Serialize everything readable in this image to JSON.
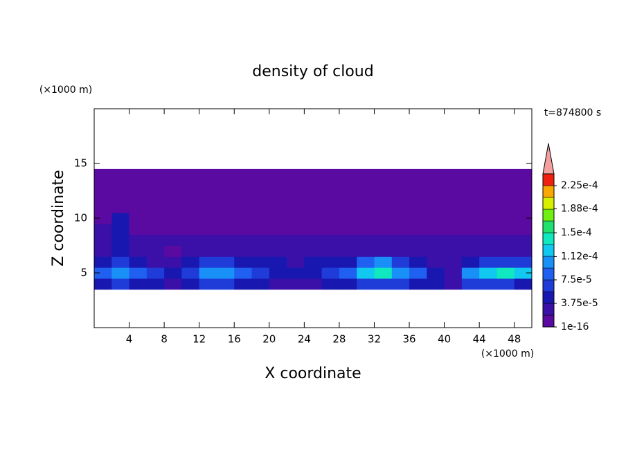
{
  "chart_data": {
    "type": "contour",
    "title": "density of cloud",
    "xlabel": "X coordinate",
    "ylabel": "Z coordinate",
    "xunit": "(×1000 m)",
    "yunit": "(×1000 m)",
    "annotation": "t=874800 s",
    "xlim": [
      0,
      50
    ],
    "ylim": [
      0,
      20
    ],
    "xticks": [
      4,
      8,
      12,
      16,
      20,
      24,
      28,
      32,
      36,
      40,
      44,
      48
    ],
    "yticks": [
      5,
      10,
      15
    ],
    "x": [
      1,
      3,
      5,
      7,
      9,
      11,
      13,
      15,
      17,
      19,
      21,
      23,
      25,
      27,
      29,
      31,
      33,
      35,
      37,
      39,
      41,
      43,
      45,
      47,
      49
    ],
    "y": [
      4,
      5,
      6,
      7,
      8,
      9,
      10,
      11,
      12,
      13,
      14
    ],
    "z": [
      [
        5e-05,
        6e-05,
        5e-05,
        4e-05,
        3e-05,
        4e-05,
        7e-05,
        7e-05,
        5e-05,
        4e-05,
        3e-05,
        3e-05,
        3e-05,
        4e-05,
        4e-05,
        6e-05,
        7e-05,
        6e-05,
        5e-05,
        4e-05,
        3e-05,
        6e-05,
        7e-05,
        6e-05,
        5e-05
      ],
      [
        9e-05,
        0.00011,
        9e-05,
        7e-05,
        5e-05,
        7e-05,
        0.0001,
        0.00011,
        8e-05,
        6e-05,
        5e-05,
        4e-05,
        5e-05,
        6e-05,
        8e-05,
        0.00013,
        0.00014,
        0.00011,
        8e-05,
        5e-05,
        2e-05,
        0.00011,
        0.00013,
        0.00014,
        0.00012
      ],
      [
        5e-05,
        6e-05,
        5e-05,
        3e-05,
        2e-05,
        4e-05,
        6e-05,
        6e-05,
        5e-05,
        4e-05,
        4e-05,
        3e-05,
        4e-05,
        5e-05,
        5e-05,
        8e-05,
        0.0001,
        6e-05,
        4e-05,
        3e-05,
        2e-05,
        5e-05,
        6e-05,
        7e-05,
        6e-05
      ],
      [
        3e-05,
        5e-05,
        3e-05,
        2e-05,
        1e-05,
        2e-05,
        3e-05,
        3e-05,
        2e-05,
        2e-05,
        3e-05,
        2e-05,
        2e-05,
        3e-05,
        2e-05,
        3e-05,
        3e-05,
        3e-05,
        2e-05,
        2e-05,
        2e-05,
        3e-05,
        3e-05,
        3e-05,
        3e-05
      ],
      [
        2e-05,
        4e-05,
        2e-05,
        2e-05,
        2e-05,
        2e-05,
        2e-05,
        2e-05,
        2e-05,
        2e-05,
        2e-05,
        2e-05,
        2e-05,
        2e-05,
        2e-05,
        2e-05,
        2e-05,
        2e-05,
        2e-05,
        2e-05,
        2e-05,
        2e-05,
        2e-05,
        2e-05,
        2e-05
      ],
      [
        2e-05,
        4e-05,
        1e-05,
        1e-05,
        1e-05,
        1e-05,
        1e-05,
        1e-05,
        1e-05,
        1e-05,
        1e-05,
        1e-05,
        1e-05,
        1e-05,
        1e-05,
        1e-05,
        1e-05,
        1e-05,
        1e-05,
        1e-05,
        1e-05,
        1e-05,
        1e-05,
        1e-05,
        1e-05
      ],
      [
        1e-06,
        4e-05,
        1e-06,
        1e-06,
        1e-06,
        1e-06,
        1e-06,
        1e-06,
        1e-06,
        1e-06,
        1e-06,
        1e-06,
        1e-06,
        1e-06,
        1e-06,
        1e-06,
        1e-06,
        1e-06,
        1e-06,
        1e-06,
        1e-06,
        1e-06,
        1e-06,
        1e-06,
        1e-06
      ],
      [
        1e-06,
        1e-06,
        1e-06,
        1e-06,
        1e-06,
        1e-06,
        1e-06,
        1e-06,
        1e-06,
        1e-06,
        1e-06,
        1e-06,
        1e-06,
        1e-06,
        1e-06,
        1e-06,
        1e-06,
        1e-06,
        1e-06,
        1e-06,
        1e-06,
        1e-06,
        1e-06,
        1e-06,
        1e-06
      ],
      [
        1e-06,
        1e-06,
        1e-06,
        1e-06,
        1e-06,
        1e-06,
        1e-06,
        1e-06,
        1e-06,
        1e-06,
        1e-06,
        1e-06,
        1e-06,
        1e-06,
        1e-06,
        1e-06,
        1e-06,
        1e-06,
        1e-06,
        1e-06,
        1e-06,
        1e-06,
        1e-06,
        1e-06,
        1e-06
      ],
      [
        1e-06,
        1e-06,
        1e-06,
        1e-06,
        1e-06,
        1e-06,
        1e-06,
        1e-06,
        1e-06,
        1e-06,
        1e-06,
        1e-06,
        1e-06,
        1e-06,
        1e-06,
        1e-06,
        1e-06,
        1e-06,
        1e-06,
        1e-06,
        1e-06,
        1e-06,
        1e-06,
        1e-06,
        1e-06
      ],
      [
        1e-06,
        1e-06,
        1e-06,
        1e-06,
        1e-06,
        1e-06,
        1e-06,
        1e-06,
        1e-06,
        1e-06,
        1e-06,
        1e-06,
        1e-06,
        1e-06,
        1e-06,
        1e-06,
        1e-06,
        1e-06,
        1e-06,
        1e-06,
        1e-06,
        1e-06,
        1e-06,
        1e-06,
        1e-06
      ]
    ],
    "colorbar": {
      "clim": [
        1e-16,
        0.00024375
      ],
      "levels": [
        1e-16,
        1.875e-05,
        3.75e-05,
        5.625e-05,
        7.5e-05,
        9.375e-05,
        0.0001125,
        0.00013125,
        0.00015,
        0.00016875,
        0.0001875,
        0.00020625,
        0.000225
      ],
      "colors": [
        "#5a0aa0",
        "#3a10a8",
        "#1818b0",
        "#1f3cd8",
        "#2060f0",
        "#1890f8",
        "#10c8f0",
        "#10e8c0",
        "#20e070",
        "#70f010",
        "#d8f000",
        "#f8a800",
        "#f02010"
      ],
      "extend_color": "#f4a0a0",
      "ticks": [
        {
          "value": 1e-16,
          "label": "1e-16"
        },
        {
          "value": 3.75e-05,
          "label": "3.75e-5"
        },
        {
          "value": 7.5e-05,
          "label": "7.5e-5"
        },
        {
          "value": 0.000112,
          "label": "1.12e-4"
        },
        {
          "value": 0.00015,
          "label": "1.5e-4"
        },
        {
          "value": 0.000188,
          "label": "1.88e-4"
        },
        {
          "value": 0.000225,
          "label": "2.25e-4"
        }
      ]
    }
  }
}
